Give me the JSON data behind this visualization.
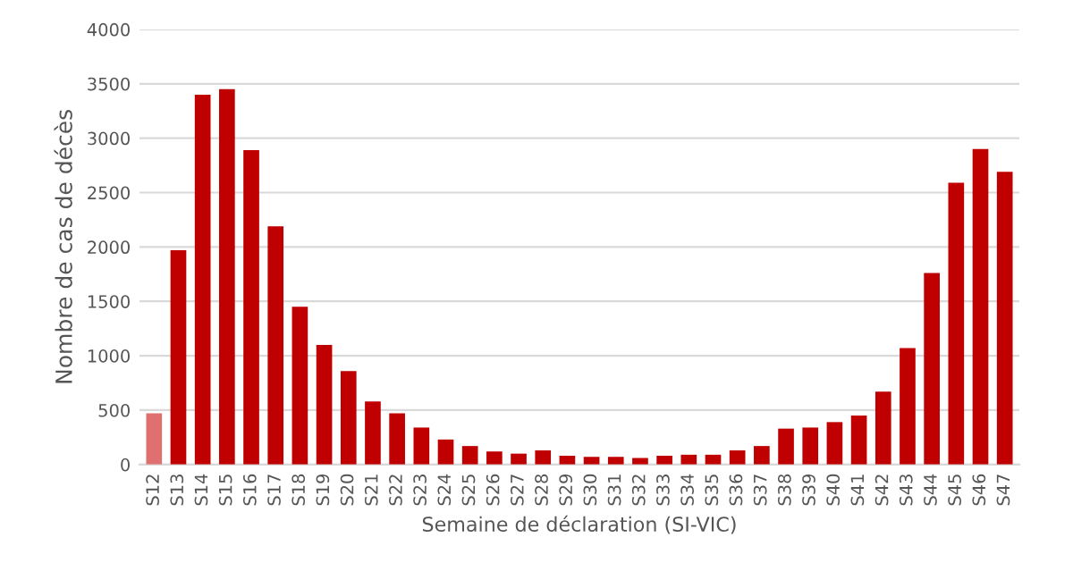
{
  "chart_data": {
    "type": "bar",
    "xlabel": "Semaine de déclaration (SI-VIC)",
    "ylabel": "Nombre de cas de décès",
    "categories": [
      "S12",
      "S13",
      "S14",
      "S15",
      "S16",
      "S17",
      "S18",
      "S19",
      "S20",
      "S21",
      "S22",
      "S23",
      "S24",
      "S25",
      "S26",
      "S27",
      "S28",
      "S29",
      "S30",
      "S31",
      "S32",
      "S33",
      "S34",
      "S35",
      "S36",
      "S37",
      "S38",
      "S39",
      "S40",
      "S41",
      "S42",
      "S43",
      "S44",
      "S45",
      "S46",
      "S47"
    ],
    "values": [
      470,
      1970,
      3400,
      3450,
      2890,
      2190,
      1450,
      1100,
      860,
      580,
      470,
      340,
      230,
      170,
      120,
      100,
      130,
      80,
      70,
      70,
      60,
      80,
      90,
      90,
      130,
      170,
      330,
      340,
      390,
      450,
      670,
      1070,
      1760,
      2590,
      2900,
      2690
    ],
    "colors": [
      "#e07070",
      "#c00000",
      "#c00000",
      "#c00000",
      "#c00000",
      "#c00000",
      "#c00000",
      "#c00000",
      "#c00000",
      "#c00000",
      "#c00000",
      "#c00000",
      "#c00000",
      "#c00000",
      "#c00000",
      "#c00000",
      "#c00000",
      "#c00000",
      "#c00000",
      "#c00000",
      "#c00000",
      "#c00000",
      "#c00000",
      "#c00000",
      "#c00000",
      "#c00000",
      "#c00000",
      "#c00000",
      "#c00000",
      "#c00000",
      "#c00000",
      "#c00000",
      "#c00000",
      "#c00000",
      "#c00000",
      "#c00000"
    ],
    "ylim": [
      0,
      4000
    ],
    "yticks": [
      0,
      500,
      1000,
      1500,
      2000,
      2500,
      3000,
      3500,
      4000
    ],
    "grid": "y"
  }
}
